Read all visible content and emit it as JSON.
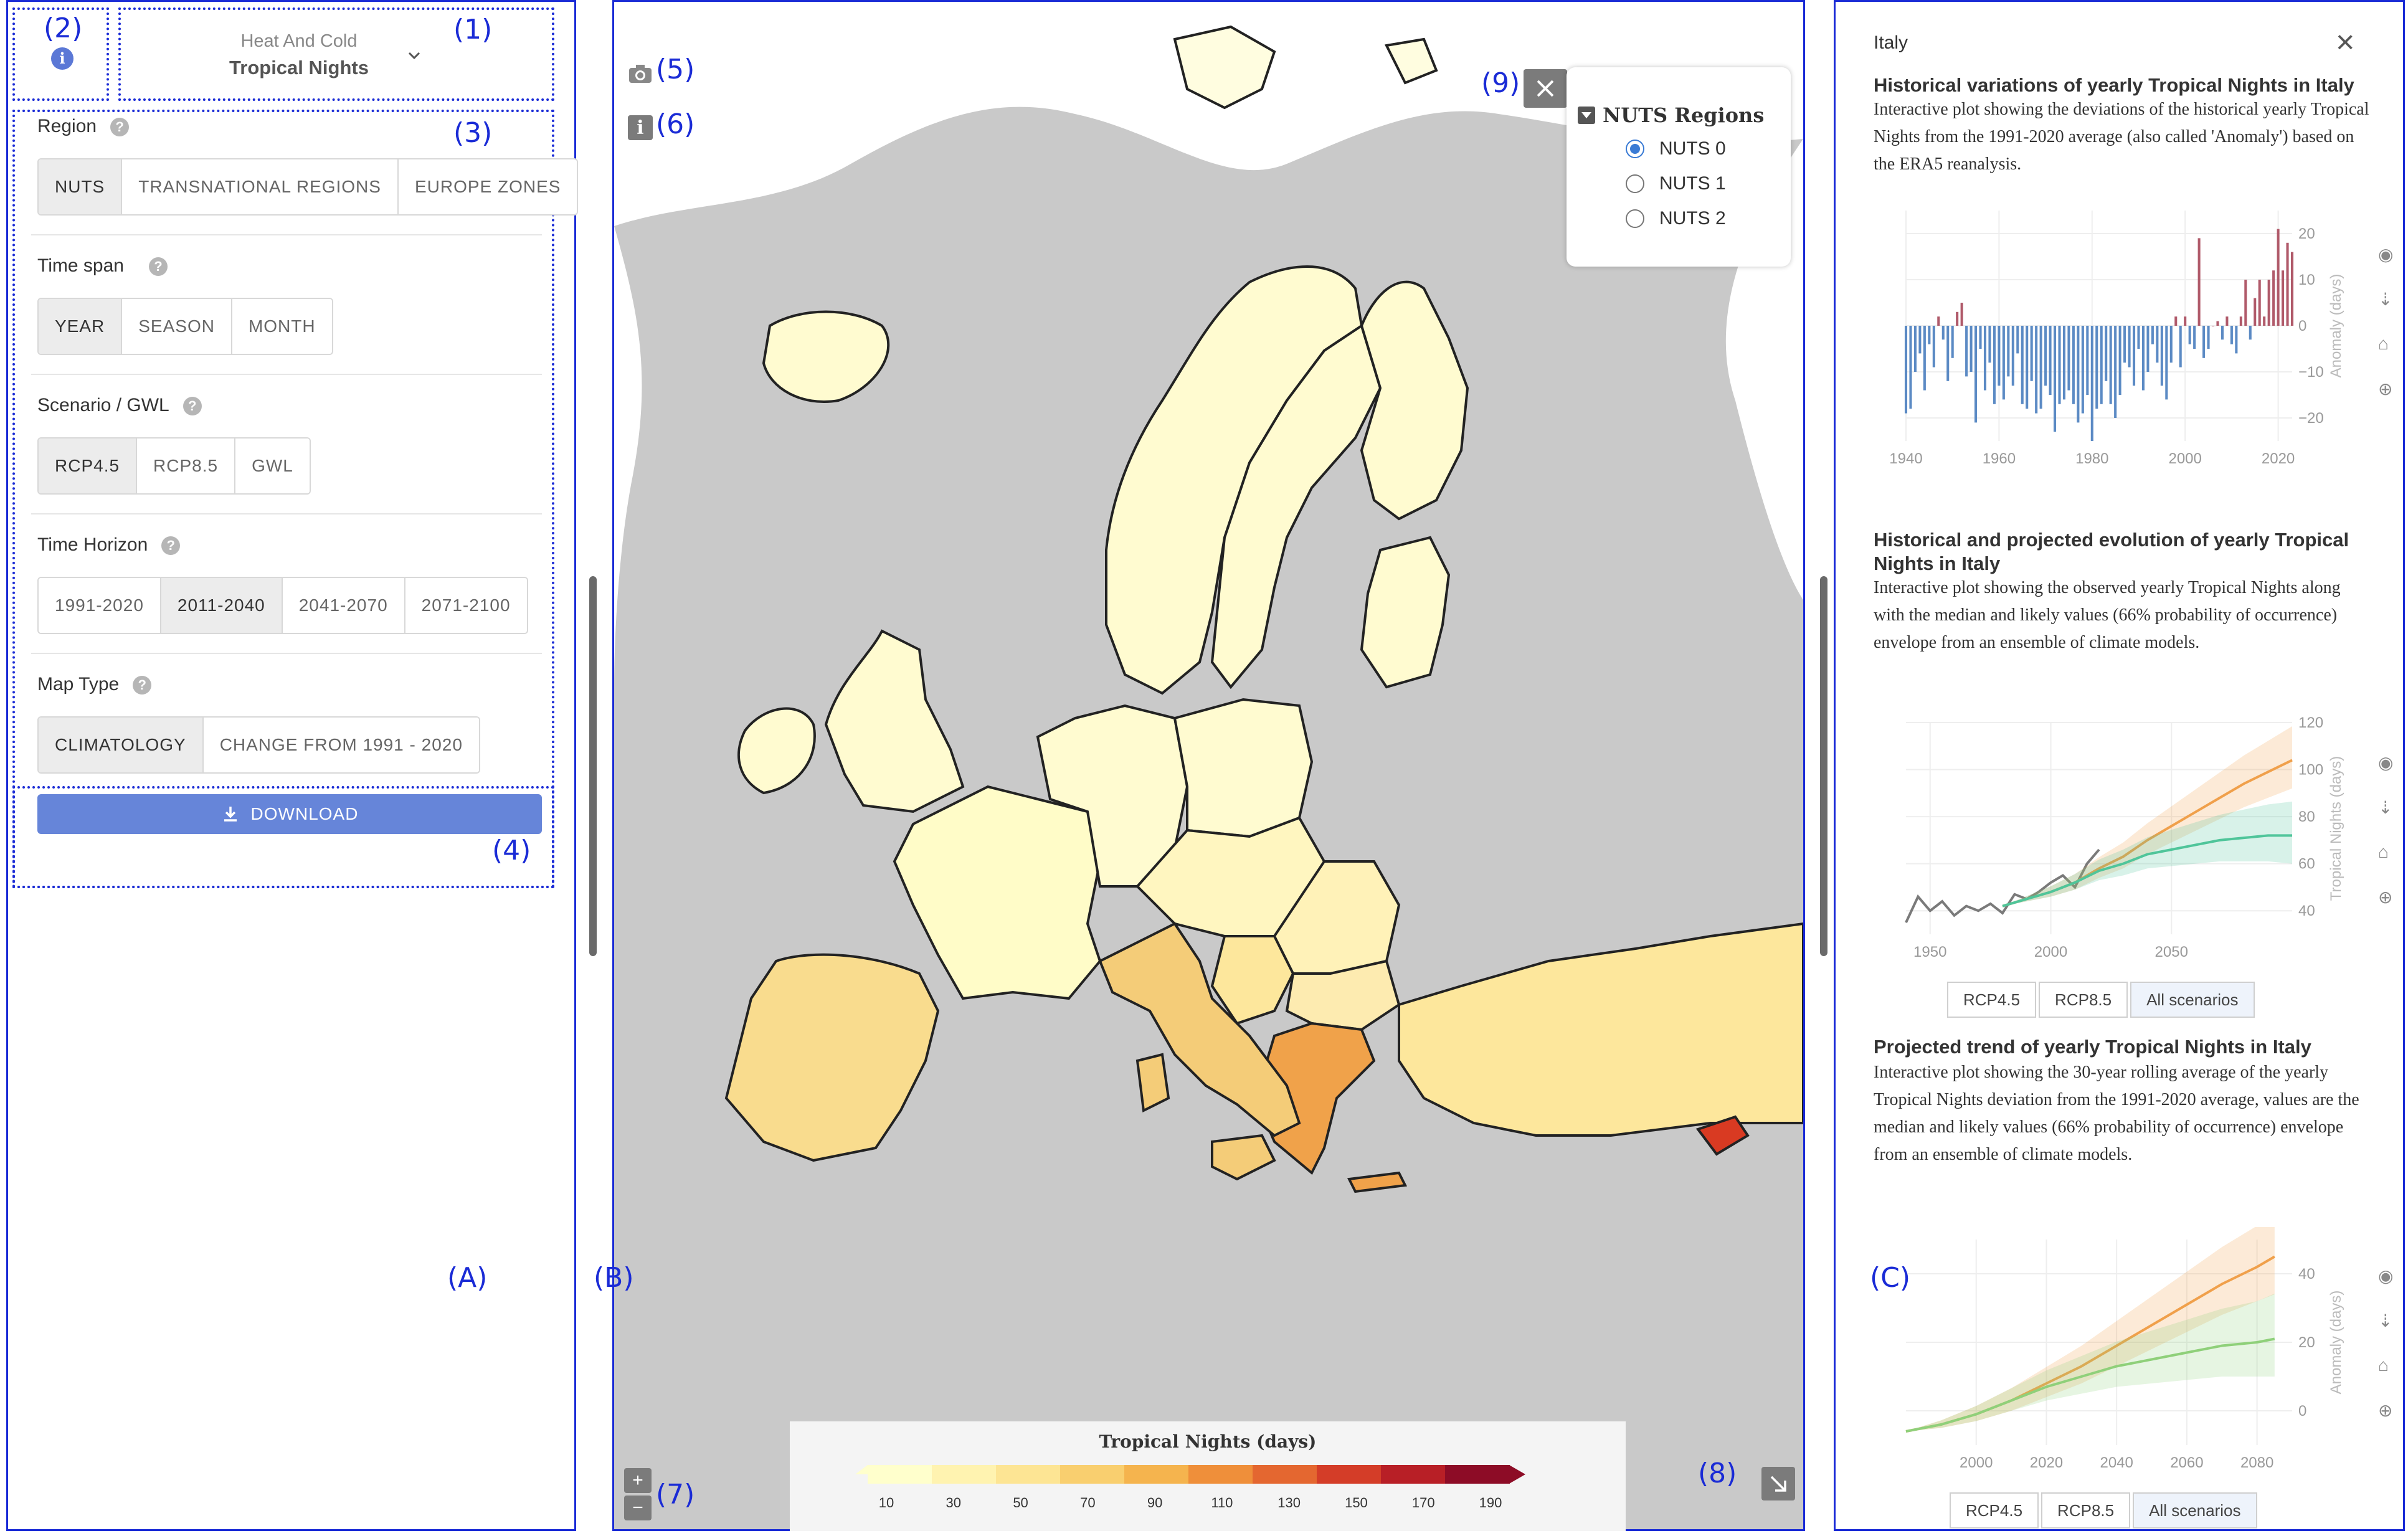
{
  "annotations": {
    "a1": "(1)",
    "a2": "(2)",
    "a3": "(3)",
    "a4": "(4)",
    "a5": "(5)",
    "a6": "(6)",
    "a7": "(7)",
    "a8": "(8)",
    "a9": "(9)",
    "A": "(A)",
    "B": "(B)",
    "C": "(C)"
  },
  "indicator": {
    "category": "Heat And Cold",
    "name": "Tropical Nights"
  },
  "filters": {
    "region": {
      "label": "Region",
      "options": [
        "NUTS",
        "TRANSNATIONAL REGIONS",
        "EUROPE ZONES"
      ],
      "selected": "NUTS"
    },
    "timespan": {
      "label": "Time span",
      "options": [
        "YEAR",
        "SEASON",
        "MONTH"
      ],
      "selected": "YEAR"
    },
    "scenario": {
      "label": "Scenario / GWL",
      "options": [
        "RCP4.5",
        "RCP8.5",
        "GWL"
      ],
      "selected": "RCP4.5"
    },
    "horizon": {
      "label": "Time Horizon",
      "options": [
        "1991-2020",
        "2011-2040",
        "2041-2070",
        "2071-2100"
      ],
      "selected": "2011-2040"
    },
    "maptype": {
      "label": "Map Type",
      "options": [
        "CLIMATOLOGY",
        "CHANGE FROM 1991 - 2020"
      ],
      "selected": "CLIMATOLOGY"
    }
  },
  "download_label": "DOWNLOAD",
  "map": {
    "layer_title": "NUTS Regions",
    "layers": [
      "NUTS 0",
      "NUTS 1",
      "NUTS 2"
    ],
    "selected_layer": "NUTS 0",
    "colorbar_title": "Tropical Nights (days)",
    "colorbar_ticks": [
      "10",
      "30",
      "50",
      "70",
      "90",
      "110",
      "130",
      "150",
      "170",
      "190"
    ],
    "colors": [
      "#ffffcc",
      "#fff3b0",
      "#fde594",
      "#f9cf6f",
      "#f5b44e",
      "#ef8f3a",
      "#e46730",
      "#d43d28",
      "#b81f26",
      "#8d0c26"
    ],
    "zoom_in": "+",
    "zoom_out": "−",
    "info": "i"
  },
  "details": {
    "region_name": "Italy",
    "close": "×",
    "sections": [
      {
        "title": "Historical variations of yearly Tropical Nights in Italy",
        "text": "Interactive plot showing the deviations of the historical yearly Tropical Nights from the 1991-2020 average (also called 'Anomaly') based on the ERA5 reanalysis."
      },
      {
        "title": "Historical and projected evolution of yearly Tropical Nights in Italy",
        "text": "Interactive plot showing the observed yearly Tropical Nights along with the median and likely values (66% probability of occurrence) envelope from an ensemble of climate models."
      },
      {
        "title": "Projected trend of yearly Tropical Nights in Italy",
        "text": "Interactive plot showing the 30-year rolling average of the yearly Tropical Nights deviation from the 1991-2020 average, values are the median and likely values (66% probability of occurrence) envelope from an ensemble of climate models."
      }
    ],
    "scenario_buttons": [
      "RCP4.5",
      "RCP8.5",
      "All scenarios"
    ]
  },
  "chart_data": [
    {
      "type": "bar",
      "ylabel": "Anomaly (days)",
      "xlim": [
        1940,
        2023
      ],
      "ylim": [
        -25,
        25
      ],
      "xticks": [
        "1940",
        "1960",
        "1980",
        "2000",
        "2020"
      ],
      "yticks": [
        "−20",
        "−10",
        "0",
        "10",
        "20"
      ],
      "colors": {
        "positive": "#b05a6a",
        "negative": "#5b8ac4"
      },
      "x": [
        1940,
        1941,
        1942,
        1943,
        1944,
        1945,
        1946,
        1947,
        1948,
        1949,
        1950,
        1951,
        1952,
        1953,
        1954,
        1955,
        1956,
        1957,
        1958,
        1959,
        1960,
        1961,
        1962,
        1963,
        1964,
        1965,
        1966,
        1967,
        1968,
        1969,
        1970,
        1971,
        1972,
        1973,
        1974,
        1975,
        1976,
        1977,
        1978,
        1979,
        1980,
        1981,
        1982,
        1983,
        1984,
        1985,
        1986,
        1987,
        1988,
        1989,
        1990,
        1991,
        1992,
        1993,
        1994,
        1995,
        1996,
        1997,
        1998,
        1999,
        2000,
        2001,
        2002,
        2003,
        2004,
        2005,
        2006,
        2007,
        2008,
        2009,
        2010,
        2011,
        2012,
        2013,
        2014,
        2015,
        2016,
        2017,
        2018,
        2019,
        2020,
        2021,
        2022,
        2023
      ],
      "values": [
        -19,
        -18,
        -10,
        -6,
        -14,
        -4,
        -9,
        2,
        -3,
        -12,
        -7,
        3,
        5,
        -11,
        -10,
        -21,
        -5,
        -14,
        -8,
        -17,
        -13,
        -16,
        -11,
        -13,
        -6,
        -17,
        -18,
        -12,
        -19,
        -18,
        -13,
        -15,
        -23,
        -17,
        -16,
        -14,
        -17,
        -21,
        -19,
        -15,
        -25,
        -18,
        -17,
        -12,
        -17,
        -20,
        -15,
        -8,
        -9,
        -13,
        -5,
        -14,
        -10,
        -4,
        -8,
        -13,
        -16,
        -8,
        2,
        -9,
        2,
        -4,
        -5,
        19,
        -7,
        -5,
        0,
        1,
        -3,
        2,
        -4,
        -6,
        2,
        10,
        -3,
        6,
        10,
        2,
        10,
        12,
        21,
        12,
        18,
        16
      ]
    },
    {
      "type": "line",
      "ylabel": "Tropical Nights (days)",
      "xlim": [
        1940,
        2100
      ],
      "ylim": [
        30,
        120
      ],
      "xticks": [
        "1950",
        "2000",
        "2050"
      ],
      "yticks": [
        "40",
        "60",
        "80",
        "100",
        "120"
      ],
      "series": [
        {
          "color": "#7a7a7a",
          "x": [
            1940,
            1945,
            1950,
            1955,
            1960,
            1965,
            1970,
            1975,
            1980,
            1985,
            1990,
            1995,
            2000,
            2005,
            2010,
            2015,
            2020
          ],
          "values": [
            35,
            46,
            40,
            44,
            38,
            42,
            40,
            43,
            39,
            47,
            45,
            48,
            52,
            55,
            50,
            60,
            66
          ]
        },
        {
          "color": "#f0a04b",
          "x": [
            1980,
            1990,
            2000,
            2010,
            2020,
            2030,
            2040,
            2050,
            2060,
            2070,
            2080,
            2090,
            2100
          ],
          "values": [
            42,
            45,
            48,
            52,
            58,
            63,
            70,
            76,
            82,
            88,
            94,
            99,
            104
          ]
        },
        {
          "color": "#4fc59a",
          "x": [
            1980,
            1990,
            2000,
            2010,
            2020,
            2030,
            2040,
            2050,
            2060,
            2070,
            2080,
            2090,
            2100
          ],
          "values": [
            42,
            45,
            48,
            52,
            57,
            60,
            64,
            66,
            68,
            70,
            71,
            72,
            72
          ]
        }
      ]
    },
    {
      "type": "line",
      "ylabel": "Anomaly (days)",
      "xlim": [
        1980,
        2090
      ],
      "ylim": [
        -10,
        50
      ],
      "xticks": [
        "2000",
        "2020",
        "2040",
        "2060",
        "2080"
      ],
      "yticks": [
        "0",
        "20",
        "40"
      ],
      "series": [
        {
          "color": "#f0a04b",
          "x": [
            1980,
            1990,
            2000,
            2010,
            2020,
            2030,
            2040,
            2050,
            2060,
            2070,
            2080,
            2085
          ],
          "values": [
            -6,
            -4,
            -1,
            3,
            8,
            13,
            19,
            25,
            31,
            37,
            42,
            45
          ]
        },
        {
          "color": "#8fd07a",
          "x": [
            1980,
            1990,
            2000,
            2010,
            2020,
            2030,
            2040,
            2050,
            2060,
            2070,
            2080,
            2085
          ],
          "values": [
            -6,
            -4,
            -1,
            3,
            7,
            10,
            13,
            15,
            17,
            19,
            20,
            21
          ]
        }
      ]
    }
  ]
}
